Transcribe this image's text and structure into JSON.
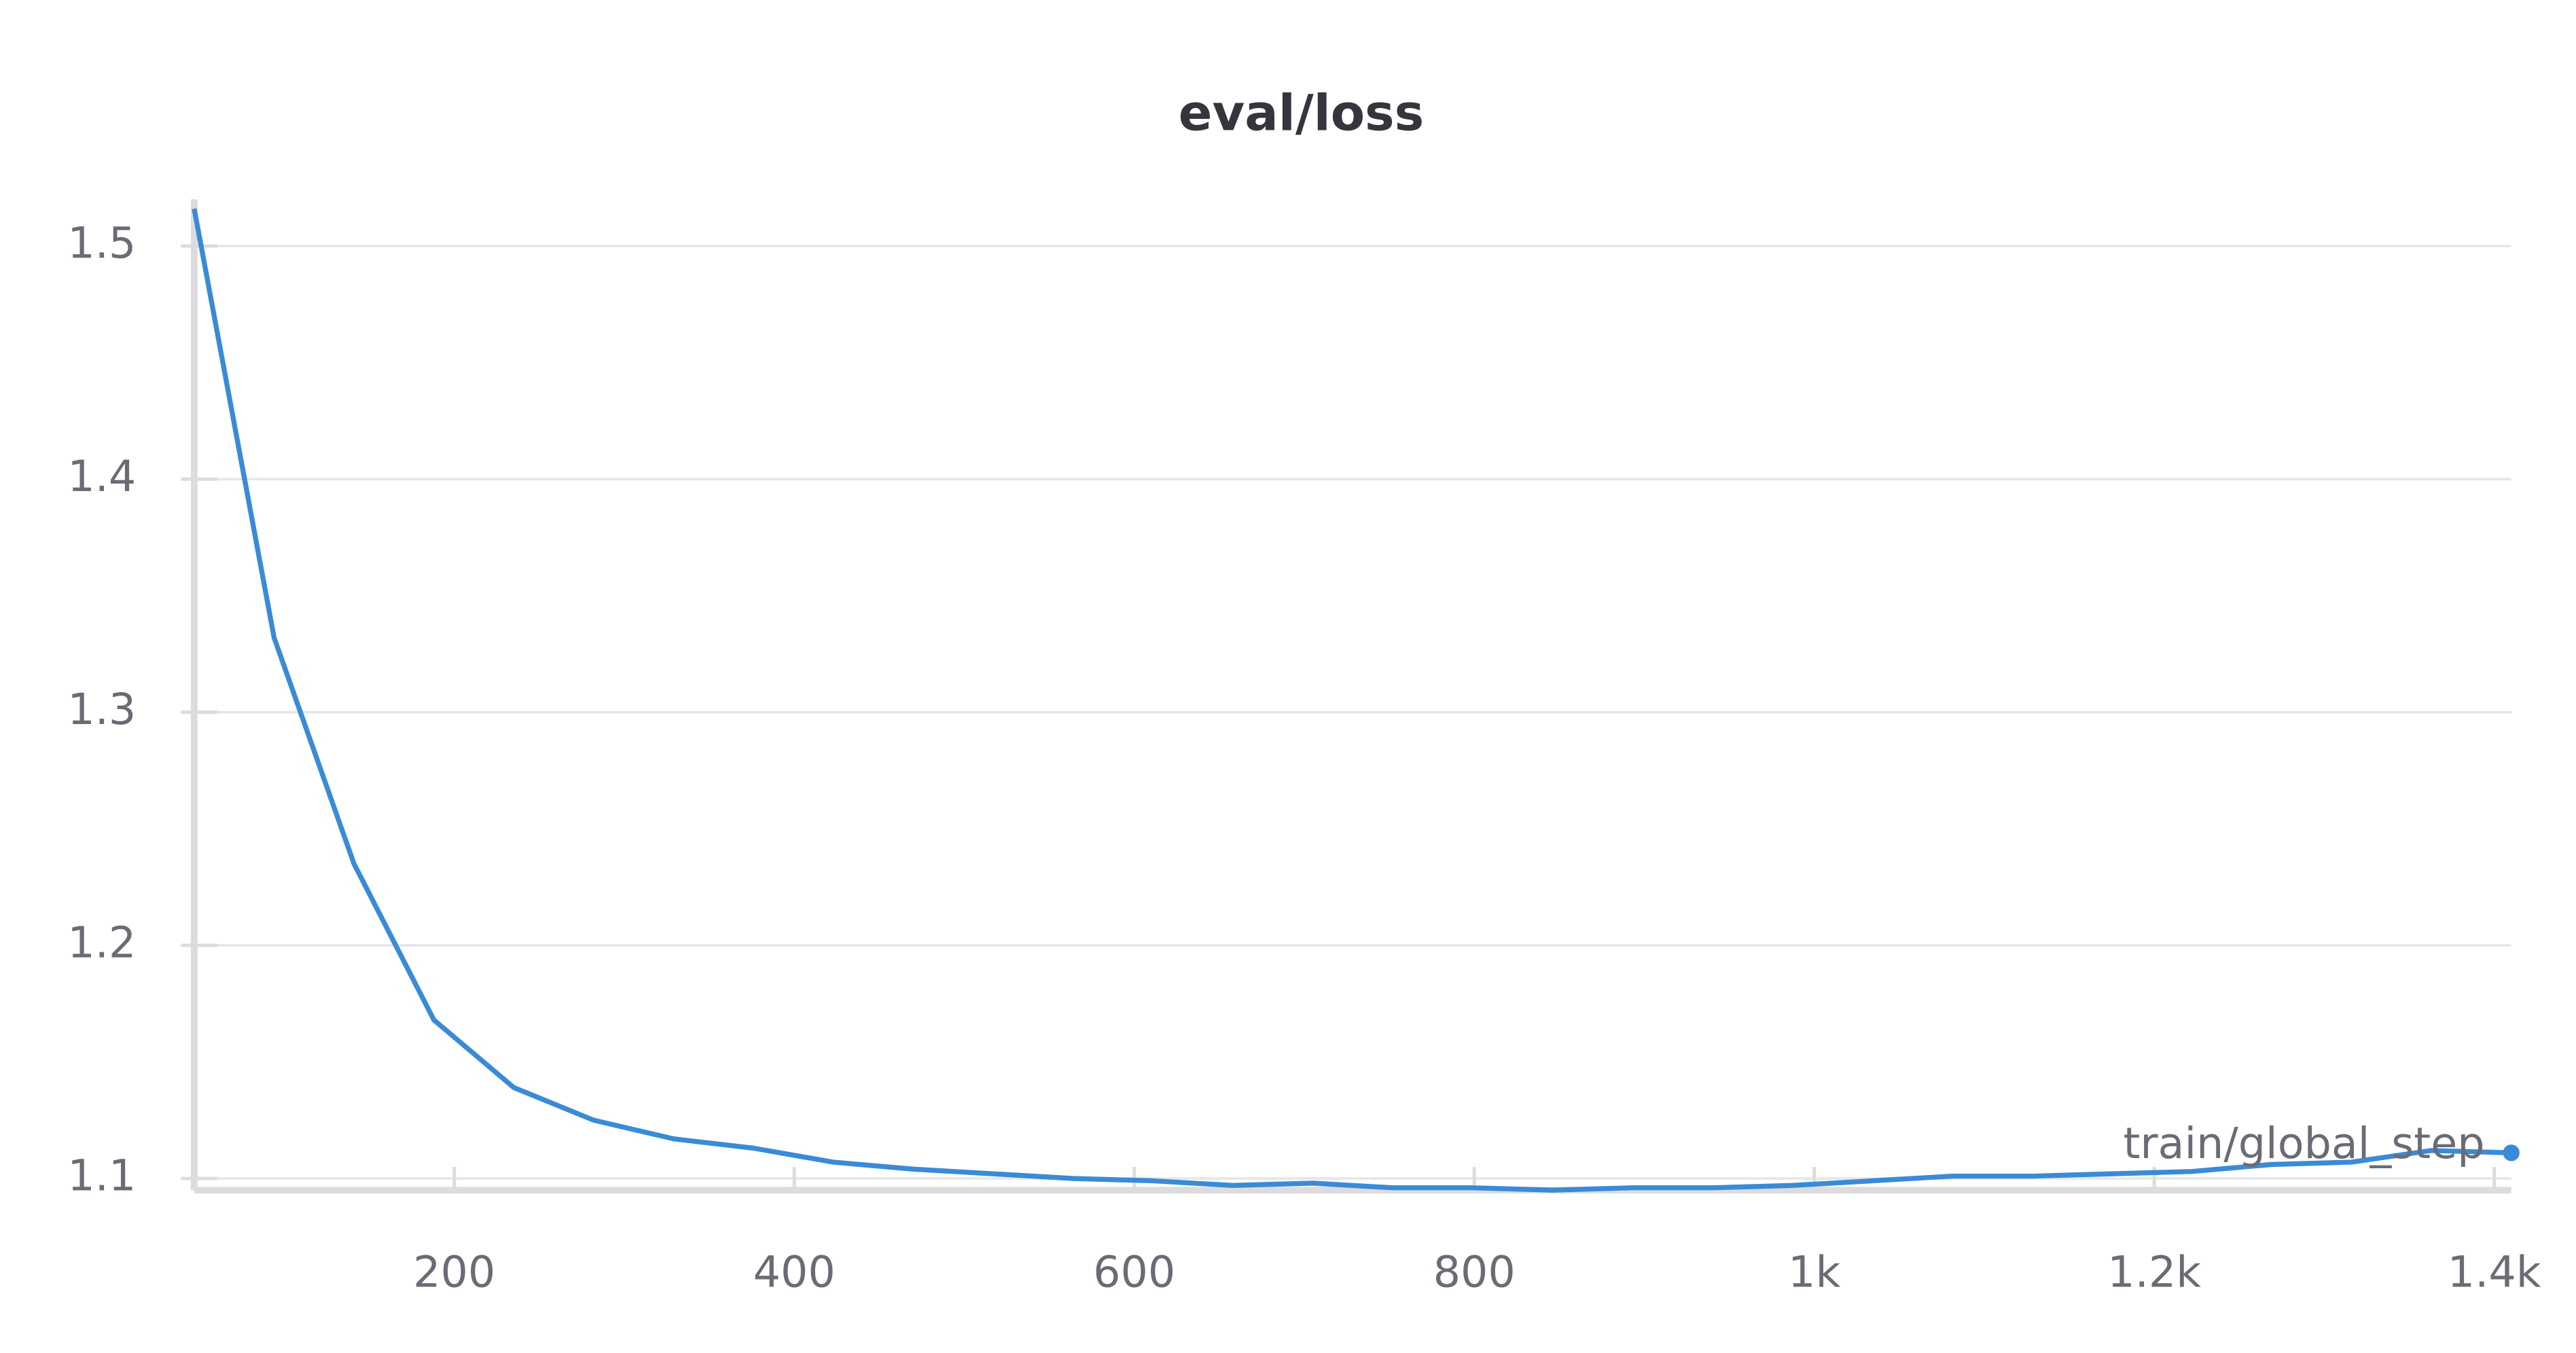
{
  "chart_data": {
    "type": "line",
    "title": "eval/loss",
    "x": [
      47,
      94,
      141,
      188,
      235,
      282,
      329,
      376,
      423,
      470,
      517,
      564,
      611,
      658,
      705,
      752,
      799,
      846,
      893,
      940,
      987,
      1034,
      1081,
      1128,
      1175,
      1222,
      1269,
      1316,
      1363,
      1410
    ],
    "series": [
      {
        "name": "train/global_step",
        "color": "#3a8bd6",
        "values": [
          1.516,
          1.332,
          1.235,
          1.168,
          1.139,
          1.125,
          1.117,
          1.113,
          1.107,
          1.104,
          1.102,
          1.1,
          1.099,
          1.097,
          1.098,
          1.096,
          1.096,
          1.095,
          1.096,
          1.096,
          1.097,
          1.099,
          1.101,
          1.101,
          1.102,
          1.103,
          1.106,
          1.107,
          1.112,
          1.111
        ]
      }
    ],
    "xlim": [
      47,
      1410
    ],
    "ylim": [
      1.095,
      1.52
    ],
    "xticks": [
      200,
      400,
      600,
      800,
      {
        "value": 1000,
        "label": "1k"
      },
      {
        "value": 1200,
        "label": "1.2k"
      },
      {
        "value": 1400,
        "label": "1.4k"
      }
    ],
    "yticks": [
      1.1,
      1.2,
      1.3,
      1.4,
      1.5
    ],
    "grid": true
  }
}
